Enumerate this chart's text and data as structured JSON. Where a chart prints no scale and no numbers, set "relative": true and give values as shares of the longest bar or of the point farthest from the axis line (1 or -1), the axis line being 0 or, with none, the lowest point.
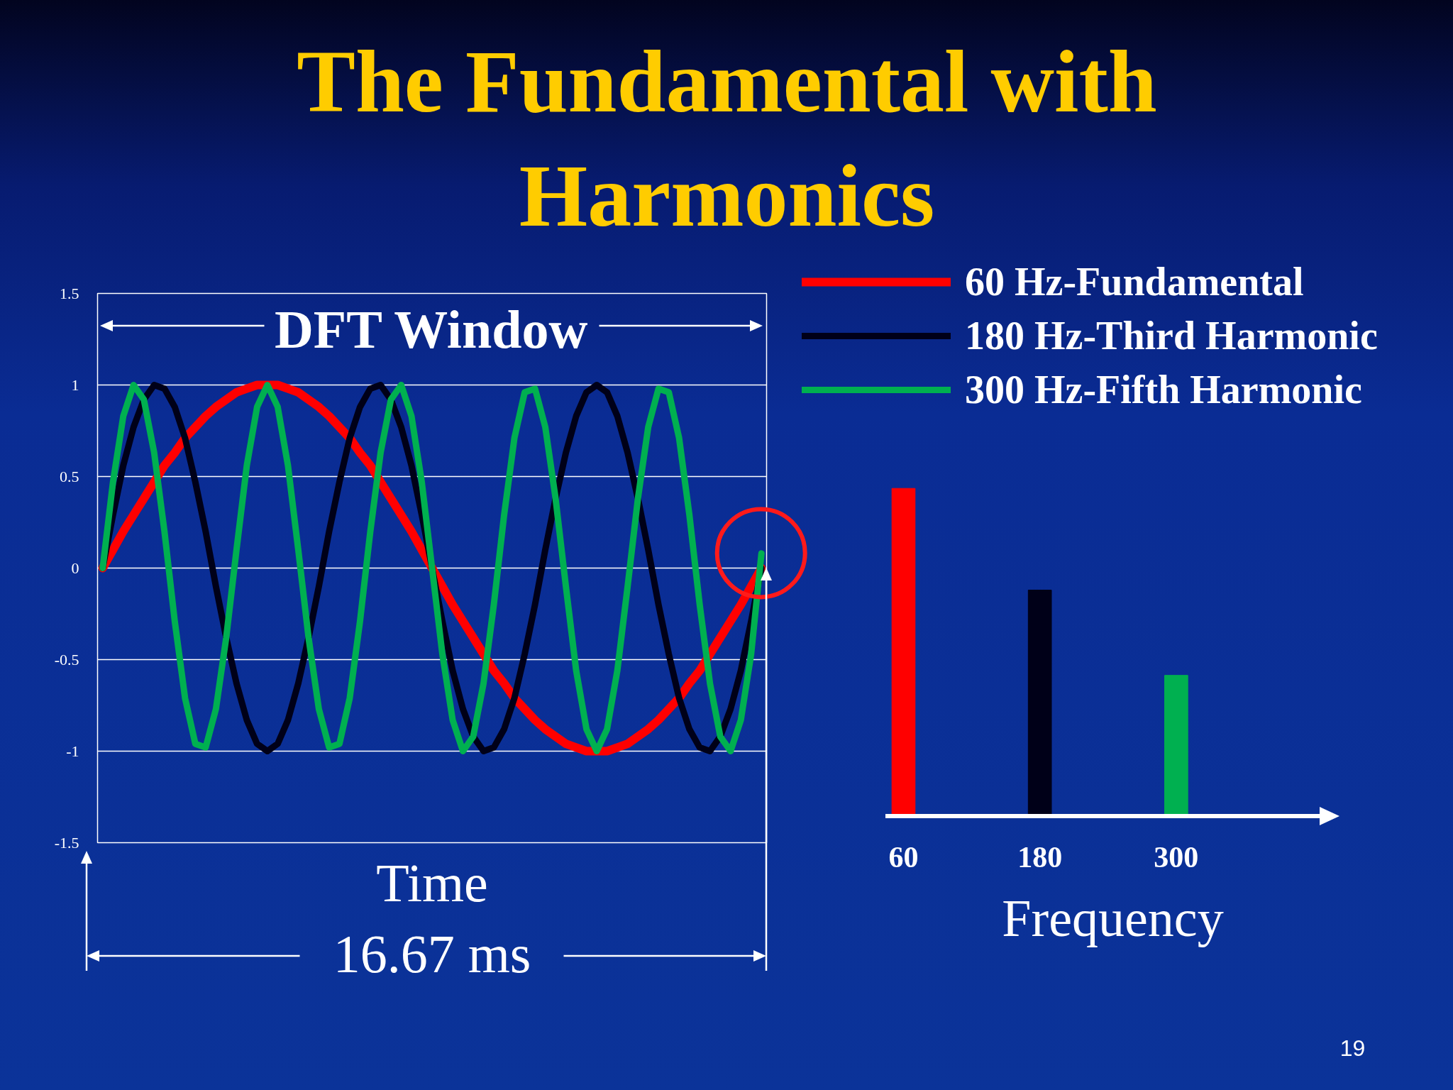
{
  "chart_data": [
    {
      "type": "line",
      "title": "The Fundamental with Harmonics",
      "xlabel": "Time",
      "annotations": [
        "DFT Window",
        "16.67 ms",
        "19"
      ],
      "categories": [
        null,
        null,
        null,
        null,
        null,
        null,
        null,
        null,
        null,
        null,
        null,
        null,
        null,
        null,
        null,
        null,
        null,
        null,
        null,
        null,
        null,
        null,
        null,
        null,
        null,
        null,
        null,
        null,
        null,
        null,
        null,
        null,
        null,
        null,
        null,
        null,
        null,
        null,
        null,
        null,
        null,
        null,
        null,
        null,
        null,
        null,
        null,
        null,
        null,
        null,
        null,
        null,
        null,
        null,
        null,
        null,
        null,
        null,
        null,
        null,
        null,
        null,
        null,
        null,
        null
      ],
      "series": [
        {
          "name": "60 Hz-Fundamental",
          "color": "#ff0000",
          "values": [
            0,
            0.1,
            0.2,
            0.29,
            0.38,
            0.47,
            0.56,
            0.63,
            0.71,
            0.77,
            0.83,
            0.88,
            0.92,
            0.96,
            0.98,
            1,
            1,
            1,
            0.98,
            0.96,
            0.92,
            0.88,
            0.83,
            0.77,
            0.71,
            0.63,
            0.56,
            0.47,
            0.38,
            0.29,
            0.2,
            0.1,
            0,
            -0.1,
            -0.2,
            -0.29,
            -0.38,
            -0.47,
            -0.56,
            -0.63,
            -0.71,
            -0.77,
            -0.83,
            -0.88,
            -0.92,
            -0.96,
            -0.98,
            -1,
            -1,
            -1,
            -0.98,
            -0.96,
            -0.92,
            -0.88,
            -0.83,
            -0.77,
            -0.71,
            -0.63,
            -0.56,
            -0.47,
            -0.38,
            -0.29,
            -0.2,
            -0.1,
            0
          ]
        },
        {
          "name": "180 Hz-Third Harmonic",
          "color": "#000018",
          "values": [
            0,
            0.29,
            0.56,
            0.77,
            0.92,
            1,
            0.98,
            0.88,
            0.71,
            0.47,
            0.2,
            -0.1,
            -0.38,
            -0.63,
            -0.83,
            -0.96,
            -1,
            -0.96,
            -0.83,
            -0.63,
            -0.38,
            -0.1,
            0.2,
            0.47,
            0.71,
            0.88,
            0.98,
            1,
            0.92,
            0.77,
            0.56,
            0.29,
            0,
            -0.29,
            -0.56,
            -0.77,
            -0.92,
            -1,
            -0.98,
            -0.88,
            -0.71,
            -0.47,
            -0.2,
            0.1,
            0.38,
            0.63,
            0.83,
            0.96,
            1,
            0.96,
            0.83,
            0.63,
            0.38,
            0.1,
            -0.2,
            -0.47,
            -0.71,
            -0.88,
            -0.98,
            -1,
            -0.92,
            -0.77,
            -0.56,
            -0.29,
            0
          ]
        },
        {
          "name": "300 Hz-Fifth Harmonic",
          "color": "#00b050",
          "values": [
            0,
            0.47,
            0.83,
            1,
            0.92,
            0.63,
            0.2,
            -0.29,
            -0.71,
            -0.96,
            -0.98,
            -0.77,
            -0.38,
            0.1,
            0.56,
            0.88,
            1,
            0.88,
            0.56,
            0.1,
            -0.38,
            -0.77,
            -0.98,
            -0.96,
            -0.71,
            -0.29,
            0.2,
            0.63,
            0.92,
            1,
            0.83,
            0.47,
            0,
            -0.47,
            -0.83,
            -1,
            -0.92,
            -0.63,
            -0.2,
            0.29,
            0.71,
            0.96,
            0.98,
            0.77,
            0.38,
            -0.1,
            -0.56,
            -0.88,
            -1,
            -0.88,
            -0.56,
            -0.1,
            0.38,
            0.77,
            0.98,
            0.96,
            0.71,
            0.29,
            -0.2,
            -0.63,
            -0.92,
            -1,
            -0.83,
            -0.47,
            0.08
          ]
        }
      ],
      "ylim": [
        -1.5,
        1.5
      ],
      "yticks": [
        -1.5,
        -1,
        -0.5,
        0,
        0.5,
        1,
        1.5
      ],
      "grid": "y",
      "legend": "top right",
      "tick_labels": "y"
    },
    {
      "type": "bar",
      "xlabel": "Frequency",
      "categories": [
        "60",
        "180",
        "300"
      ],
      "values": [
        1,
        0.69,
        0.43
      ],
      "colors": [
        "#ff0000",
        "#000018",
        "#00b050"
      ],
      "relative": true
    }
  ]
}
